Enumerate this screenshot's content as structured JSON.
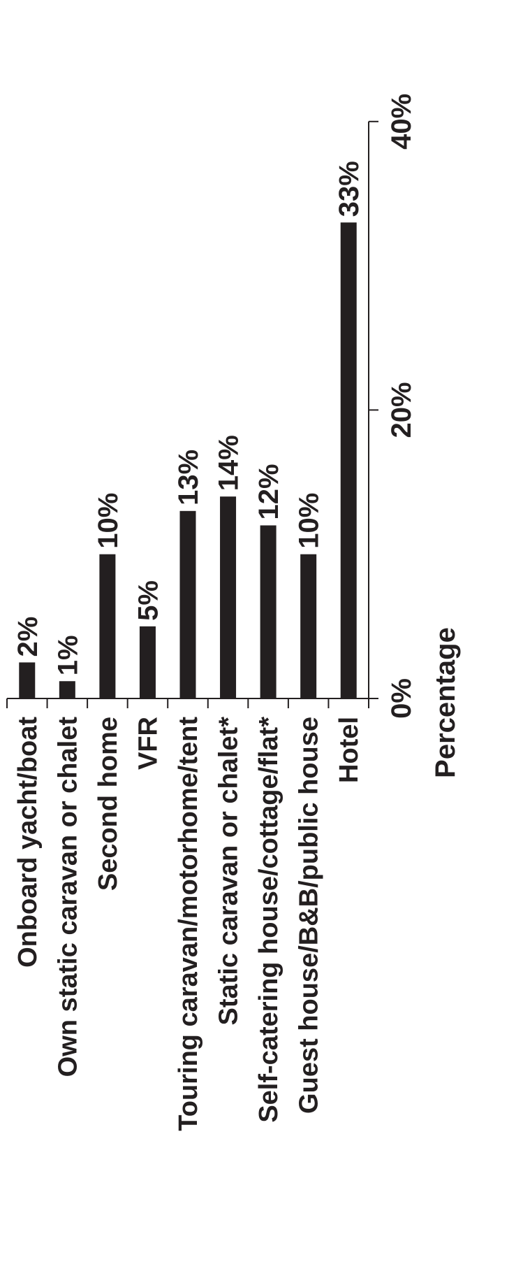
{
  "chart_data": {
    "type": "bar",
    "orientation": "vertical-rotated",
    "categories": [
      "Onboard yacht/boat",
      "Own static caravan or chalet",
      "Second home",
      "VFR",
      "Touring caravan/motorhome/tent",
      "Static caravan or chalet*",
      "Self-catering house/cottage/flat*",
      "Guest house/B&B/public house",
      "Hotel"
    ],
    "values": [
      2.5,
      1.2,
      10,
      5,
      13,
      14,
      12,
      10,
      33
    ],
    "value_labels": [
      "2%",
      "1%",
      "10%",
      "5%",
      "13%",
      "14%",
      "12%",
      "10%",
      "33%"
    ],
    "title": "",
    "xlabel": "",
    "ylabel": "Percentage",
    "ylim": [
      0,
      40
    ],
    "yticks": [
      0,
      20,
      40
    ],
    "ytick_labels": [
      "0%",
      "20%",
      "40%"
    ],
    "grid": false,
    "legend": "none",
    "bar_color": "#231f20"
  }
}
